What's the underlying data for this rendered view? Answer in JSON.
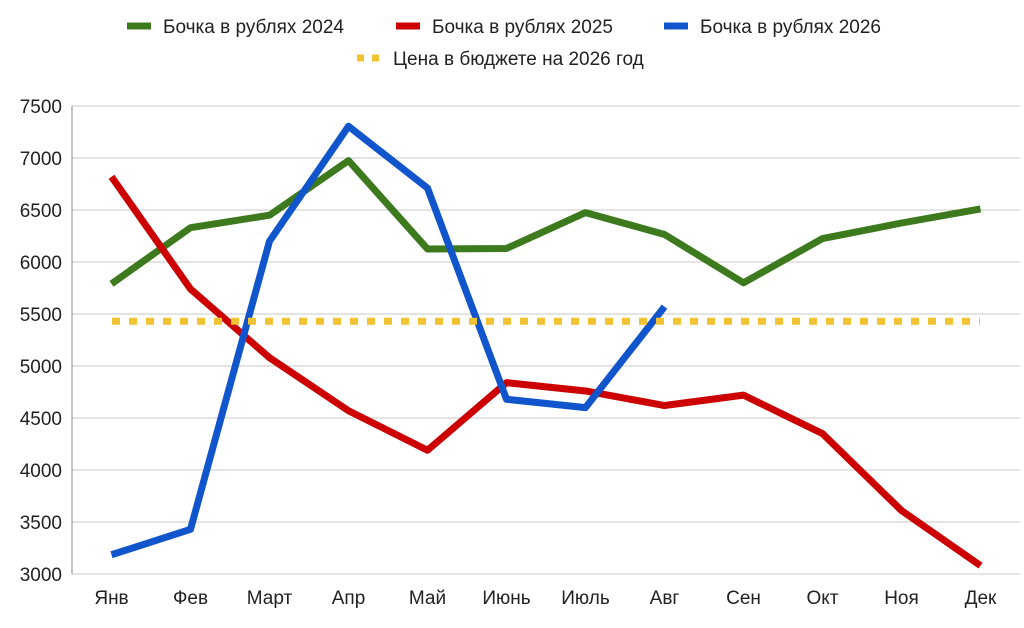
{
  "chart_data": {
    "type": "line",
    "title": "",
    "xlabel": "",
    "ylabel": "",
    "ylim": [
      3000,
      7500
    ],
    "yticks": [
      3000,
      3500,
      4000,
      4500,
      5000,
      5500,
      6000,
      6500,
      7000,
      7500
    ],
    "grid": "horizontal",
    "legend_position": "top",
    "categories": [
      "Янв",
      "Фев",
      "Март",
      "Апр",
      "Май",
      "Июнь",
      "Июль",
      "Авг",
      "Сен",
      "Окт",
      "Ноя",
      "Дек"
    ],
    "series": [
      {
        "name": "Бочка в рублях 2024",
        "color": "#3d7a1e",
        "style": "solid",
        "values": [
          5790,
          6330,
          6450,
          6975,
          6125,
          6130,
          6475,
          6265,
          5800,
          6225,
          6375,
          6510
        ]
      },
      {
        "name": "Бочка в рублях 2025",
        "color": "#cc0000",
        "style": "solid",
        "values": [
          6820,
          5740,
          5080,
          4570,
          4190,
          4840,
          4760,
          4620,
          4720,
          4350,
          3610,
          3080
        ]
      },
      {
        "name": "Бочка в рублях 2026",
        "color": "#1155cc",
        "style": "solid",
        "values": [
          3185,
          3430,
          6200,
          7305,
          6710,
          4680,
          4600,
          5570,
          null,
          null,
          null,
          null
        ]
      },
      {
        "name": "Цена в бюджете на 2026 год",
        "color": "#f1c232",
        "style": "dotted",
        "values": [
          5430,
          5430,
          5430,
          5430,
          5430,
          5430,
          5430,
          5430,
          5430,
          5430,
          5430,
          5430
        ]
      }
    ]
  }
}
